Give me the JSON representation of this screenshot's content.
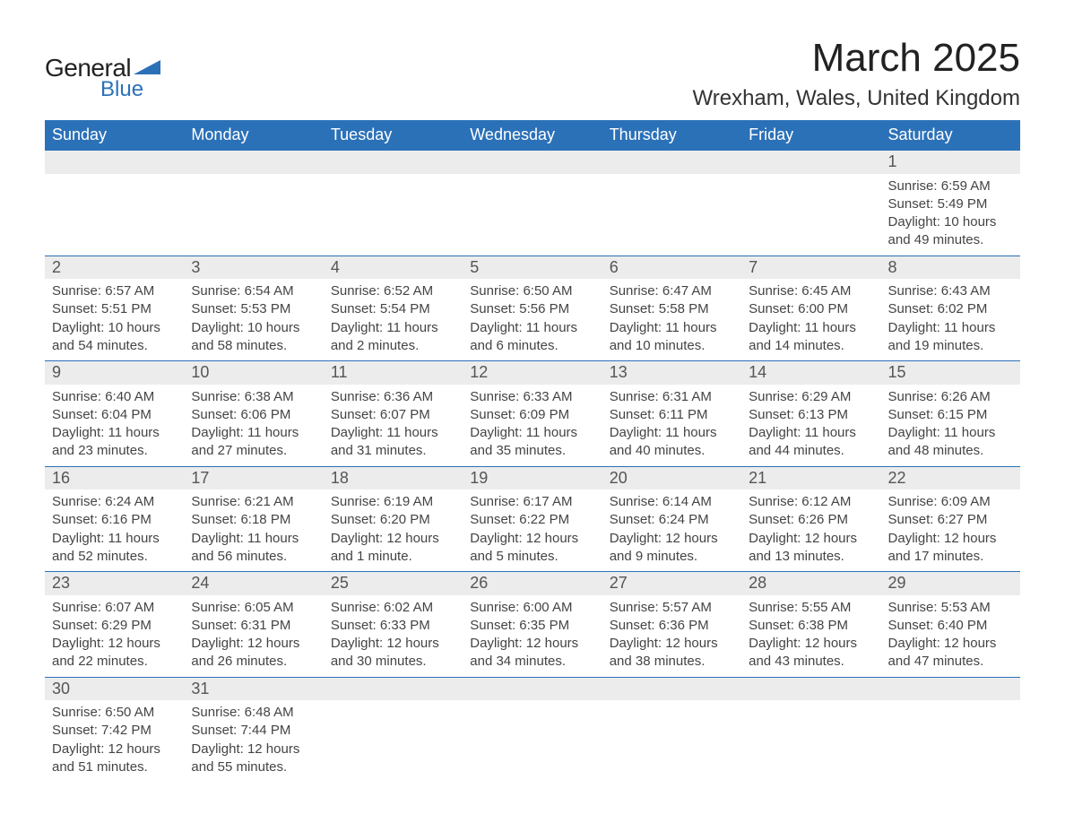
{
  "logo": {
    "text1": "General",
    "text2": "Blue",
    "triangle_color": "#2b71b8"
  },
  "title": "March 2025",
  "location": "Wrexham, Wales, United Kingdom",
  "colors": {
    "header_bg": "#2b71b8",
    "header_text": "#ffffff",
    "daynum_bg": "#ececec",
    "daynum_text": "#555555",
    "body_text": "#444444",
    "row_border": "#2b71b8",
    "page_bg": "#ffffff"
  },
  "font": {
    "family": "Arial",
    "title_size": 44,
    "location_size": 24,
    "th_size": 18,
    "daynum_size": 18,
    "cell_size": 15
  },
  "weekdays": [
    "Sunday",
    "Monday",
    "Tuesday",
    "Wednesday",
    "Thursday",
    "Friday",
    "Saturday"
  ],
  "weeks": [
    [
      null,
      null,
      null,
      null,
      null,
      null,
      {
        "d": "1",
        "sr": "6:59 AM",
        "ss": "5:49 PM",
        "dl": "10 hours and 49 minutes."
      }
    ],
    [
      {
        "d": "2",
        "sr": "6:57 AM",
        "ss": "5:51 PM",
        "dl": "10 hours and 54 minutes."
      },
      {
        "d": "3",
        "sr": "6:54 AM",
        "ss": "5:53 PM",
        "dl": "10 hours and 58 minutes."
      },
      {
        "d": "4",
        "sr": "6:52 AM",
        "ss": "5:54 PM",
        "dl": "11 hours and 2 minutes."
      },
      {
        "d": "5",
        "sr": "6:50 AM",
        "ss": "5:56 PM",
        "dl": "11 hours and 6 minutes."
      },
      {
        "d": "6",
        "sr": "6:47 AM",
        "ss": "5:58 PM",
        "dl": "11 hours and 10 minutes."
      },
      {
        "d": "7",
        "sr": "6:45 AM",
        "ss": "6:00 PM",
        "dl": "11 hours and 14 minutes."
      },
      {
        "d": "8",
        "sr": "6:43 AM",
        "ss": "6:02 PM",
        "dl": "11 hours and 19 minutes."
      }
    ],
    [
      {
        "d": "9",
        "sr": "6:40 AM",
        "ss": "6:04 PM",
        "dl": "11 hours and 23 minutes."
      },
      {
        "d": "10",
        "sr": "6:38 AM",
        "ss": "6:06 PM",
        "dl": "11 hours and 27 minutes."
      },
      {
        "d": "11",
        "sr": "6:36 AM",
        "ss": "6:07 PM",
        "dl": "11 hours and 31 minutes."
      },
      {
        "d": "12",
        "sr": "6:33 AM",
        "ss": "6:09 PM",
        "dl": "11 hours and 35 minutes."
      },
      {
        "d": "13",
        "sr": "6:31 AM",
        "ss": "6:11 PM",
        "dl": "11 hours and 40 minutes."
      },
      {
        "d": "14",
        "sr": "6:29 AM",
        "ss": "6:13 PM",
        "dl": "11 hours and 44 minutes."
      },
      {
        "d": "15",
        "sr": "6:26 AM",
        "ss": "6:15 PM",
        "dl": "11 hours and 48 minutes."
      }
    ],
    [
      {
        "d": "16",
        "sr": "6:24 AM",
        "ss": "6:16 PM",
        "dl": "11 hours and 52 minutes."
      },
      {
        "d": "17",
        "sr": "6:21 AM",
        "ss": "6:18 PM",
        "dl": "11 hours and 56 minutes."
      },
      {
        "d": "18",
        "sr": "6:19 AM",
        "ss": "6:20 PM",
        "dl": "12 hours and 1 minute."
      },
      {
        "d": "19",
        "sr": "6:17 AM",
        "ss": "6:22 PM",
        "dl": "12 hours and 5 minutes."
      },
      {
        "d": "20",
        "sr": "6:14 AM",
        "ss": "6:24 PM",
        "dl": "12 hours and 9 minutes."
      },
      {
        "d": "21",
        "sr": "6:12 AM",
        "ss": "6:26 PM",
        "dl": "12 hours and 13 minutes."
      },
      {
        "d": "22",
        "sr": "6:09 AM",
        "ss": "6:27 PM",
        "dl": "12 hours and 17 minutes."
      }
    ],
    [
      {
        "d": "23",
        "sr": "6:07 AM",
        "ss": "6:29 PM",
        "dl": "12 hours and 22 minutes."
      },
      {
        "d": "24",
        "sr": "6:05 AM",
        "ss": "6:31 PM",
        "dl": "12 hours and 26 minutes."
      },
      {
        "d": "25",
        "sr": "6:02 AM",
        "ss": "6:33 PM",
        "dl": "12 hours and 30 minutes."
      },
      {
        "d": "26",
        "sr": "6:00 AM",
        "ss": "6:35 PM",
        "dl": "12 hours and 34 minutes."
      },
      {
        "d": "27",
        "sr": "5:57 AM",
        "ss": "6:36 PM",
        "dl": "12 hours and 38 minutes."
      },
      {
        "d": "28",
        "sr": "5:55 AM",
        "ss": "6:38 PM",
        "dl": "12 hours and 43 minutes."
      },
      {
        "d": "29",
        "sr": "5:53 AM",
        "ss": "6:40 PM",
        "dl": "12 hours and 47 minutes."
      }
    ],
    [
      {
        "d": "30",
        "sr": "6:50 AM",
        "ss": "7:42 PM",
        "dl": "12 hours and 51 minutes."
      },
      {
        "d": "31",
        "sr": "6:48 AM",
        "ss": "7:44 PM",
        "dl": "12 hours and 55 minutes."
      },
      null,
      null,
      null,
      null,
      null
    ]
  ],
  "labels": {
    "sunrise": "Sunrise: ",
    "sunset": "Sunset: ",
    "daylight": "Daylight: "
  }
}
